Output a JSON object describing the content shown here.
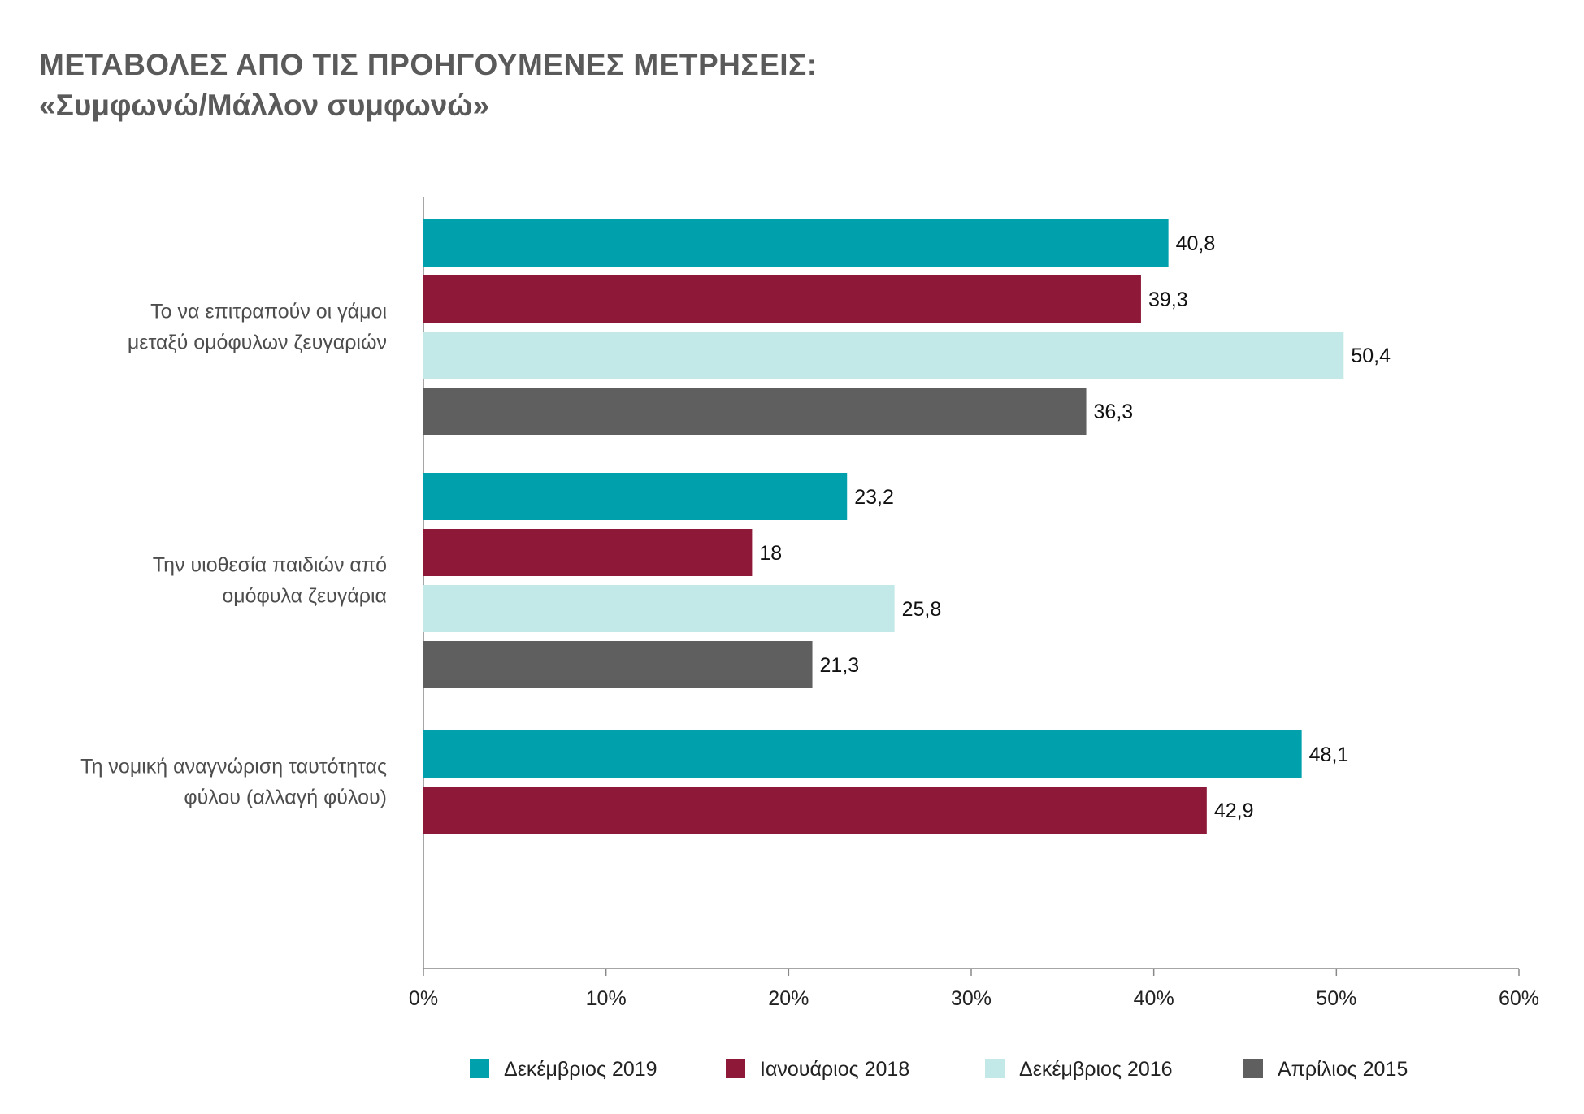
{
  "title": {
    "line1": "ΜΕΤΑΒΟΛΕΣ ΑΠΟ ΤΙΣ ΠΡΟΗΓΟΥΜΕΝΕΣ ΜΕΤΡΗΣΕΙΣ:",
    "line2": "«Συμφωνώ/Μάλλον συμφωνώ»"
  },
  "chart_data": {
    "type": "bar",
    "orientation": "horizontal",
    "categories": [
      [
        "Το να επιτραπούν οι γάμοι",
        "μεταξύ ομόφυλων ζευγαριών"
      ],
      [
        "Την υιοθεσία παιδιών από",
        "ομόφυλα ζευγάρια"
      ],
      [
        "Τη νομική αναγνώριση ταυτότητας",
        "φύλου (αλλαγή φύλου)"
      ]
    ],
    "series": [
      {
        "name": "Δεκέμβριος 2019",
        "color": "#00a1ad",
        "values": [
          40.8,
          23.2,
          48.1
        ],
        "labels": [
          "40,8",
          "23,2",
          "48,1"
        ]
      },
      {
        "name": "Ιανουάριος 2018",
        "color": "#8e1838",
        "values": [
          39.3,
          18,
          42.9
        ],
        "labels": [
          "39,3",
          "18",
          "42,9"
        ]
      },
      {
        "name": "Δεκέμβριος 2016",
        "color": "#c2e9e8",
        "values": [
          50.4,
          25.8,
          null
        ],
        "labels": [
          "50,4",
          "25,8",
          null
        ]
      },
      {
        "name": "Απρίλιος 2015",
        "color": "#5f5f5f",
        "values": [
          36.3,
          21.3,
          null
        ],
        "labels": [
          "36,3",
          "21,3",
          null
        ]
      }
    ],
    "xlim": [
      0,
      60
    ],
    "ticks": [
      0,
      10,
      20,
      30,
      40,
      50,
      60
    ],
    "tick_labels": [
      "0%",
      "10%",
      "20%",
      "30%",
      "40%",
      "50%",
      "60%"
    ],
    "legend_position": "bottom",
    "grid": false
  }
}
